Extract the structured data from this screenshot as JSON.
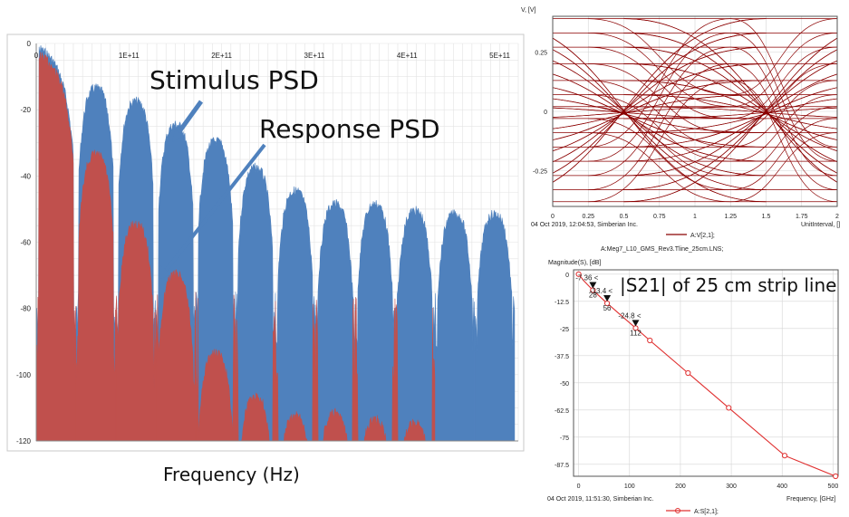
{
  "chart_data": [
    {
      "type": "area",
      "title": "",
      "xlabel": "Frequency (Hz)",
      "ylabel": "",
      "xlim": [
        0,
        520000000000.0
      ],
      "ylim": [
        -120,
        0
      ],
      "x_ticks": [
        0,
        100000000000.0,
        200000000000.0,
        300000000000.0,
        400000000000.0,
        500000000000.0
      ],
      "x_tick_labels": [
        "0",
        "1E+11",
        "2E+11",
        "3E+11",
        "4E+11",
        "5E+11"
      ],
      "y_ticks": [
        0,
        -20,
        -40,
        -60,
        -80,
        -100,
        -120
      ],
      "y_tick_labels": [
        "0",
        "-20",
        "-40",
        "-60",
        "-80",
        "-100",
        "-120"
      ],
      "grid": true,
      "series": [
        {
          "name": "Stimulus PSD",
          "color": "#4f81bd",
          "lobe_width_hz": 43000000000.0,
          "lobe_peaks_db": [
            0,
            -12,
            -16,
            -23,
            -28,
            -36,
            -43,
            -47,
            -47,
            -49,
            -50,
            -50
          ]
        },
        {
          "name": "Response PSD",
          "color": "#c0504d",
          "lobe_width_hz": 43000000000.0,
          "lobe_peaks_db": [
            -2,
            -32,
            -53,
            -68,
            -92,
            -105,
            -111,
            -110,
            -112,
            -113
          ]
        }
      ],
      "annotations": [
        "Stimulus PSD",
        "Response PSD"
      ]
    },
    {
      "type": "line",
      "title": "",
      "xlabel": "UnitInterval, []",
      "ylabel": "V, [V]",
      "xlim": [
        0,
        2
      ],
      "ylim": [
        -0.4,
        0.4
      ],
      "x_ticks": [
        0,
        0.25,
        0.5,
        0.75,
        1,
        1.25,
        1.5,
        1.75,
        2
      ],
      "x_tick_labels": [
        "0",
        "0.25",
        "0.5",
        "0.75",
        "1",
        "1.25",
        "1.5",
        "1.75",
        "2"
      ],
      "y_ticks": [
        0.25,
        0,
        -0.25
      ],
      "y_tick_labels": [
        "0.25",
        "0",
        "-0.25"
      ],
      "grid": true,
      "legend": "A:V[2,1];",
      "footer": "04 Oct 2019, 12:04:53, Simberian Inc.",
      "caption": "A:Meg7_L10_GMS_Rev3.Tline_25cm.LNS;",
      "series": [
        {
          "name": "A:V[2,1];",
          "color": "#8b0000",
          "level_values": [
            0.39,
            0.33,
            0.27,
            0.2,
            0.13,
            0.07,
            0.02,
            -0.03,
            -0.09,
            -0.15,
            -0.21,
            -0.27,
            -0.33,
            -0.38
          ]
        }
      ]
    },
    {
      "type": "line",
      "title": "",
      "xlabel": "Frequency, [GHz]",
      "ylabel": "Magnitude(S), [dB]",
      "xlim": [
        -10,
        510
      ],
      "ylim": [
        -93,
        2
      ],
      "x_ticks": [
        0,
        100,
        200,
        300,
        400,
        500
      ],
      "x_tick_labels": [
        "0",
        "100",
        "200",
        "300",
        "400",
        "500"
      ],
      "y_ticks": [
        0,
        -12.5,
        -25,
        -37.5,
        -50,
        -62.5,
        -75,
        -87.5
      ],
      "y_tick_labels": [
        "0",
        "-12.5",
        "-25",
        "-37.5",
        "-50",
        "-62.5",
        "-75",
        "-87.5"
      ],
      "grid": true,
      "legend": "A:S[2,1];",
      "footer": "04 Oct 2019, 11:51:30, Simberian Inc.",
      "annotation": "|S21| of 25 cm strip line",
      "series": [
        {
          "name": "A:S[2,1];",
          "color": "#e03030",
          "x": [
            0,
            10,
            28,
            56,
            112,
            140,
            215,
            295,
            405,
            505
          ],
          "y": [
            0,
            -3,
            -7.36,
            -13.4,
            -24.8,
            -30.5,
            -45.5,
            -61.5,
            -83.5,
            -93
          ]
        }
      ],
      "markers": [
        {
          "freq": "28",
          "value": "-7.36",
          "x": 28,
          "y": -7.36
        },
        {
          "freq": "56",
          "value": "-13.4",
          "x": 56,
          "y": -13.4
        },
        {
          "freq": "112",
          "value": "-24.8",
          "x": 112,
          "y": -24.8
        }
      ]
    }
  ]
}
